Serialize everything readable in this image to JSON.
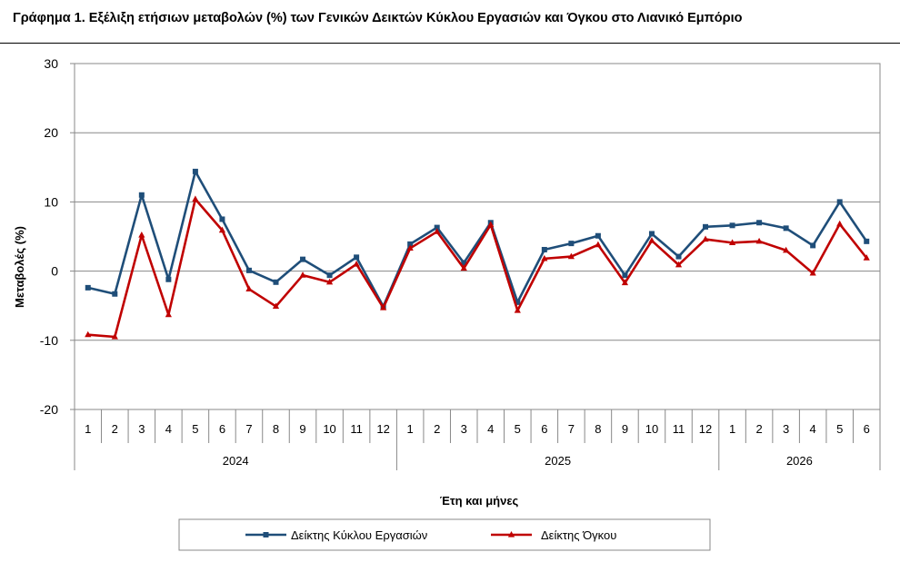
{
  "title": "Γράφημα 1. Εξέλιξη ετήσιων μεταβολών (%) των Γενικών Δεικτών Κύκλου Εργασιών και Όγκου στο Λιανικό Εμπόριο",
  "chart_data": {
    "type": "line",
    "title": "Γράφημα 1. Εξέλιξη ετήσιων μεταβολών (%) των Γενικών Δεικτών Κύκλου Εργασιών και Όγκου στο Λιανικό Εμπόριο",
    "xlabel": "Έτη και μήνες",
    "ylabel": "Μεταβολές (%)",
    "ylim": [
      -20,
      30
    ],
    "yticks": [
      30,
      20,
      10,
      0,
      -10,
      -20
    ],
    "grid": true,
    "legend_placement": "bottom",
    "categories": [
      "1",
      "2",
      "3",
      "4",
      "5",
      "6",
      "7",
      "8",
      "9",
      "10",
      "11",
      "12",
      "1",
      "2",
      "3",
      "4",
      "5",
      "6",
      "7",
      "8",
      "9",
      "10",
      "11",
      "12",
      "1",
      "2",
      "3",
      "4",
      "5",
      "6"
    ],
    "groups": [
      {
        "label": "2024",
        "count": 12
      },
      {
        "label": "2025",
        "count": 12
      },
      {
        "label": "2026",
        "count": 6
      }
    ],
    "series": [
      {
        "name": "Δείκτης Κύκλου Εργασιών",
        "color": "#1F4E79",
        "marker": "square",
        "values": [
          -2.4,
          -3.3,
          11.0,
          -1.2,
          14.4,
          7.5,
          0.1,
          -1.6,
          1.7,
          -0.6,
          2.0,
          -5.1,
          3.9,
          6.3,
          1.2,
          7.0,
          -4.5,
          3.1,
          4.0,
          5.1,
          -0.6,
          5.4,
          2.1,
          6.4,
          6.6,
          7.0,
          6.2,
          3.7,
          10.0,
          4.3
        ]
      },
      {
        "name": "Δείκτης Όγκου",
        "color": "#C00000",
        "marker": "triangle",
        "values": [
          -9.2,
          -9.5,
          5.2,
          -6.3,
          10.4,
          5.9,
          -2.6,
          -5.1,
          -0.6,
          -1.6,
          1.0,
          -5.3,
          3.3,
          5.7,
          0.4,
          6.7,
          -5.7,
          1.8,
          2.1,
          3.8,
          -1.7,
          4.4,
          0.9,
          4.6,
          4.1,
          4.3,
          3.0,
          -0.3,
          6.8,
          1.9
        ]
      }
    ]
  }
}
